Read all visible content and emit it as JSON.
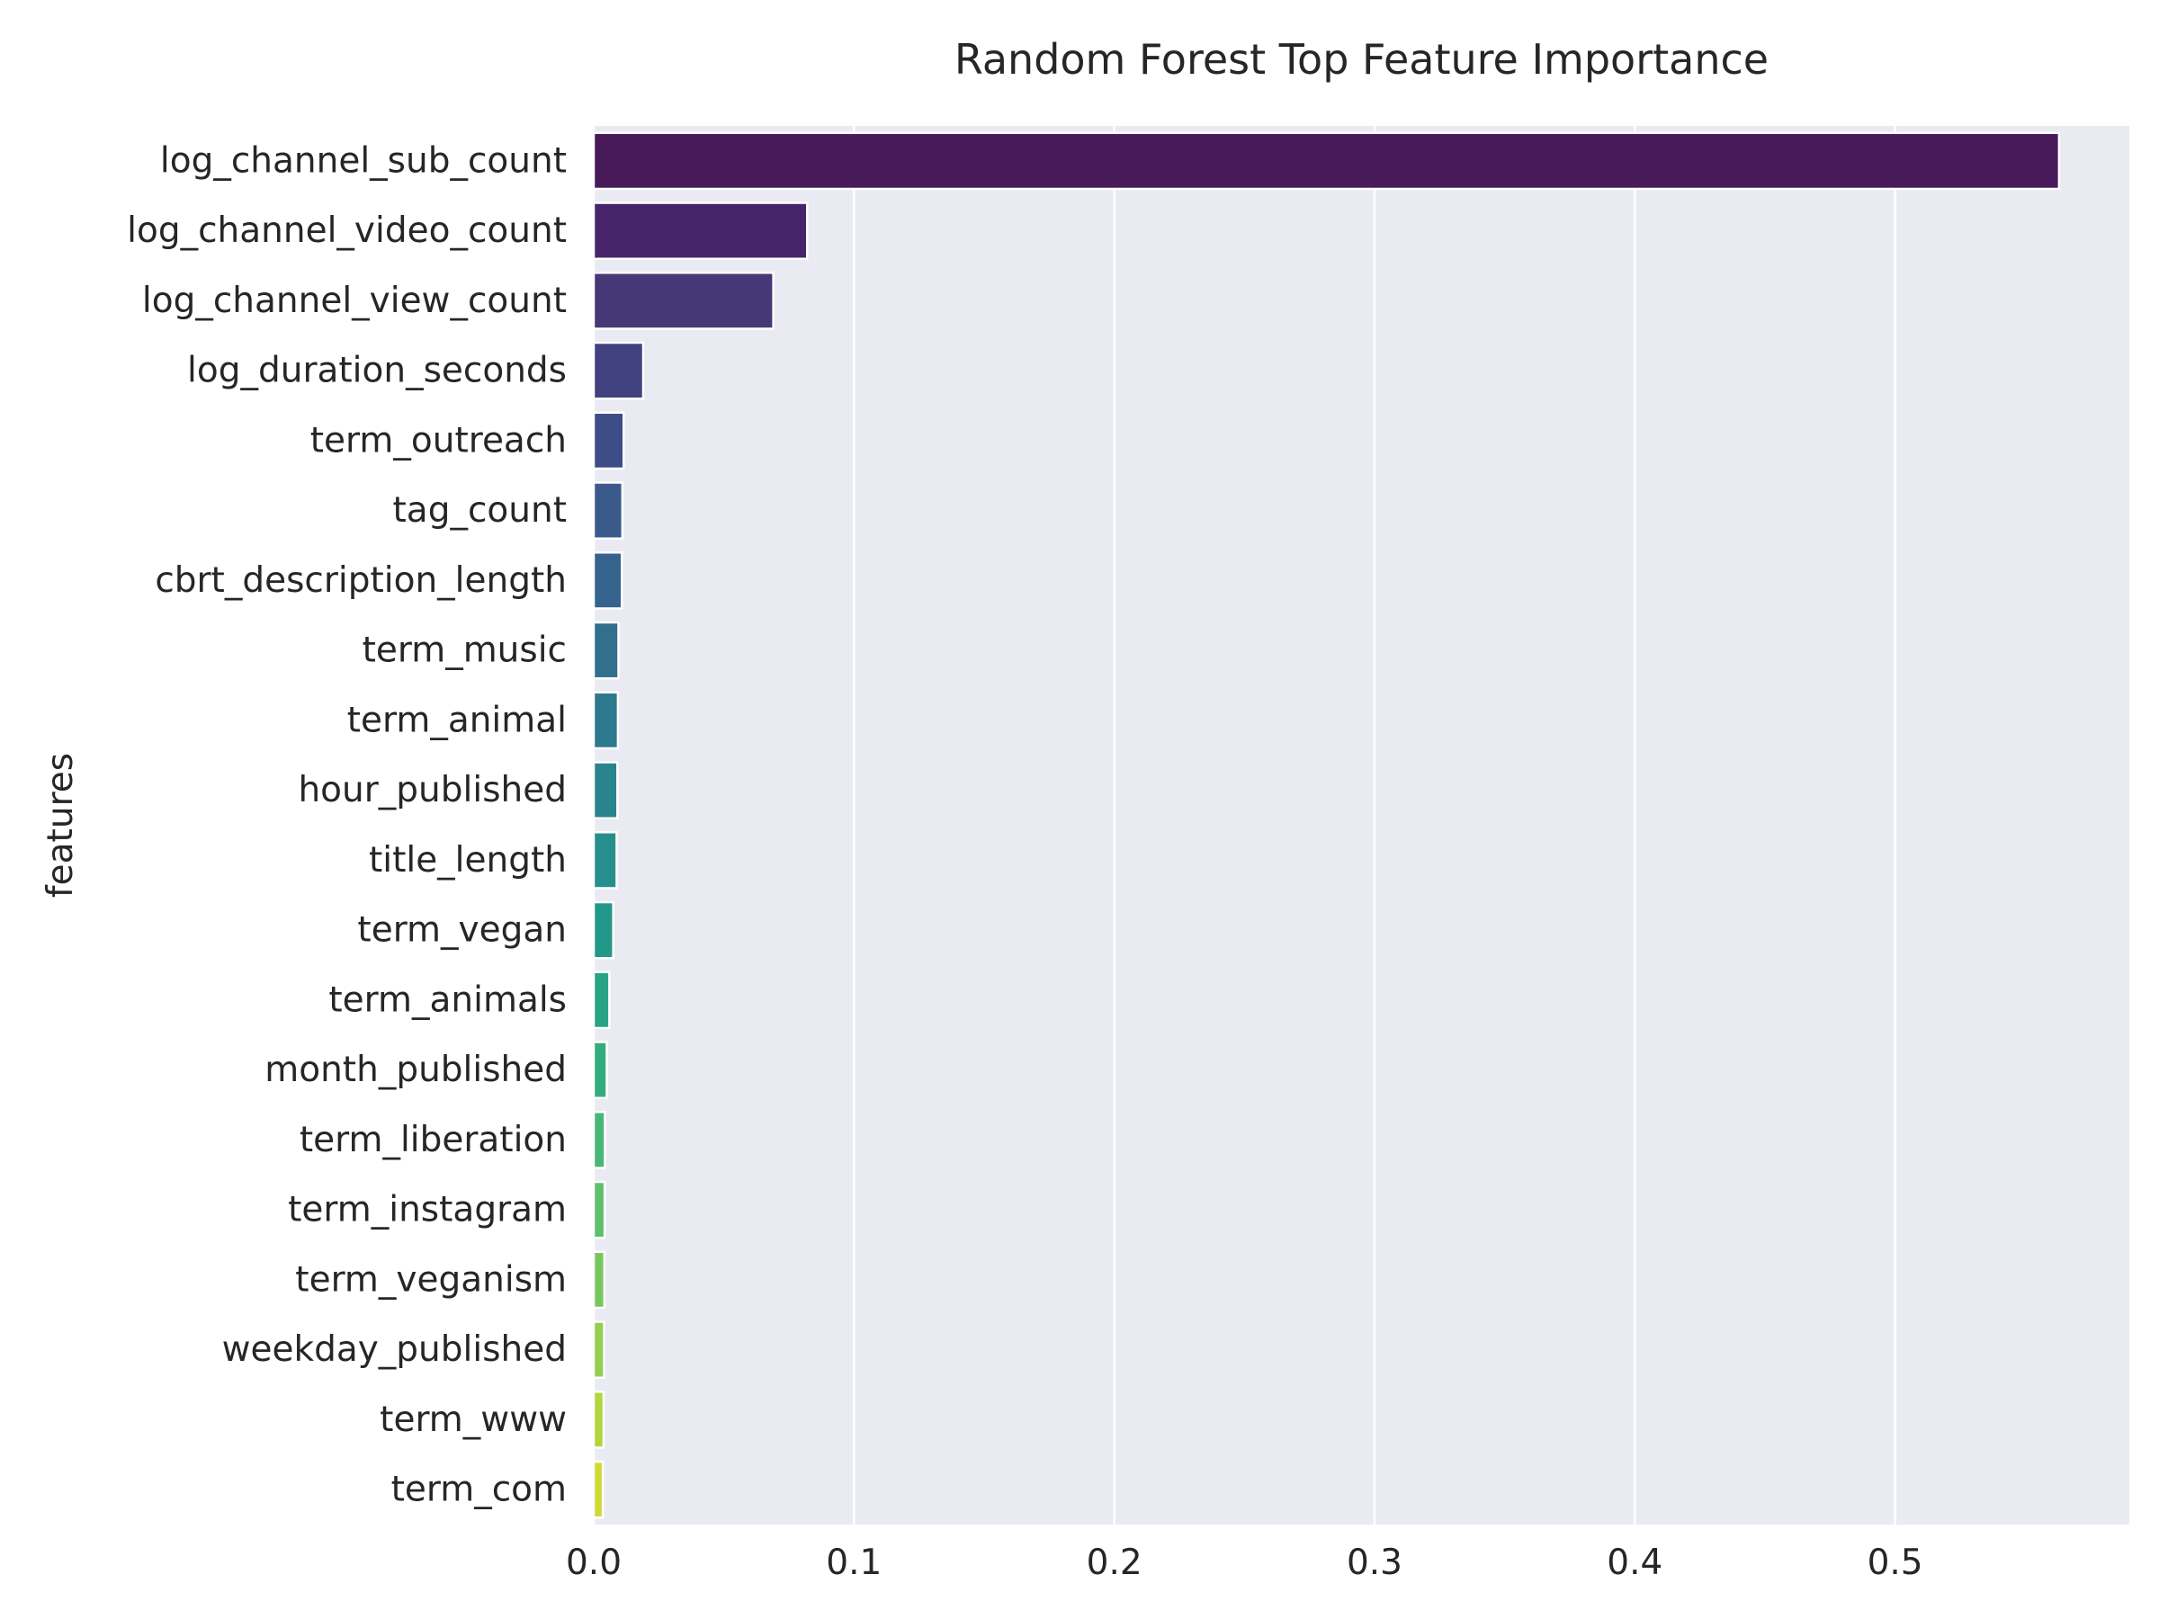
{
  "chart_data": {
    "type": "bar",
    "orientation": "horizontal",
    "title": "Random Forest Top Feature Importance",
    "xlabel": "",
    "ylabel": "features",
    "xlim": [
      0.0,
      0.59
    ],
    "xticks": [
      0.0,
      0.1,
      0.2,
      0.3,
      0.4,
      0.5
    ],
    "xtick_labels": [
      "0.0",
      "0.1",
      "0.2",
      "0.3",
      "0.4",
      "0.5"
    ],
    "grid": true,
    "background": "#eaeaf2",
    "palette": "viridis",
    "categories": [
      "log_channel_sub_count",
      "log_channel_video_count",
      "log_channel_view_count",
      "log_duration_seconds",
      "term_outreach",
      "tag_count",
      "cbrt_description_length",
      "term_music",
      "term_animal",
      "hour_published",
      "title_length",
      "term_vegan",
      "term_animals",
      "month_published",
      "term_liberation",
      "term_instagram",
      "term_veganism",
      "weekday_published",
      "term_www",
      "term_com"
    ],
    "values": [
      0.563,
      0.082,
      0.069,
      0.019,
      0.0115,
      0.011,
      0.0108,
      0.0095,
      0.0093,
      0.0091,
      0.0088,
      0.0075,
      0.006,
      0.005,
      0.0043,
      0.0042,
      0.0041,
      0.004,
      0.0038,
      0.0035
    ],
    "colors": [
      "#481a5a",
      "#48256a",
      "#463776",
      "#424180",
      "#3e4c87",
      "#3b598b",
      "#36638d",
      "#316f8d",
      "#2d798e",
      "#29848e",
      "#268e8c",
      "#23988a",
      "#27a386",
      "#33ac7f",
      "#48b677",
      "#5ec06d",
      "#77c760",
      "#93cf50",
      "#b2d53e",
      "#cfd932"
    ]
  }
}
